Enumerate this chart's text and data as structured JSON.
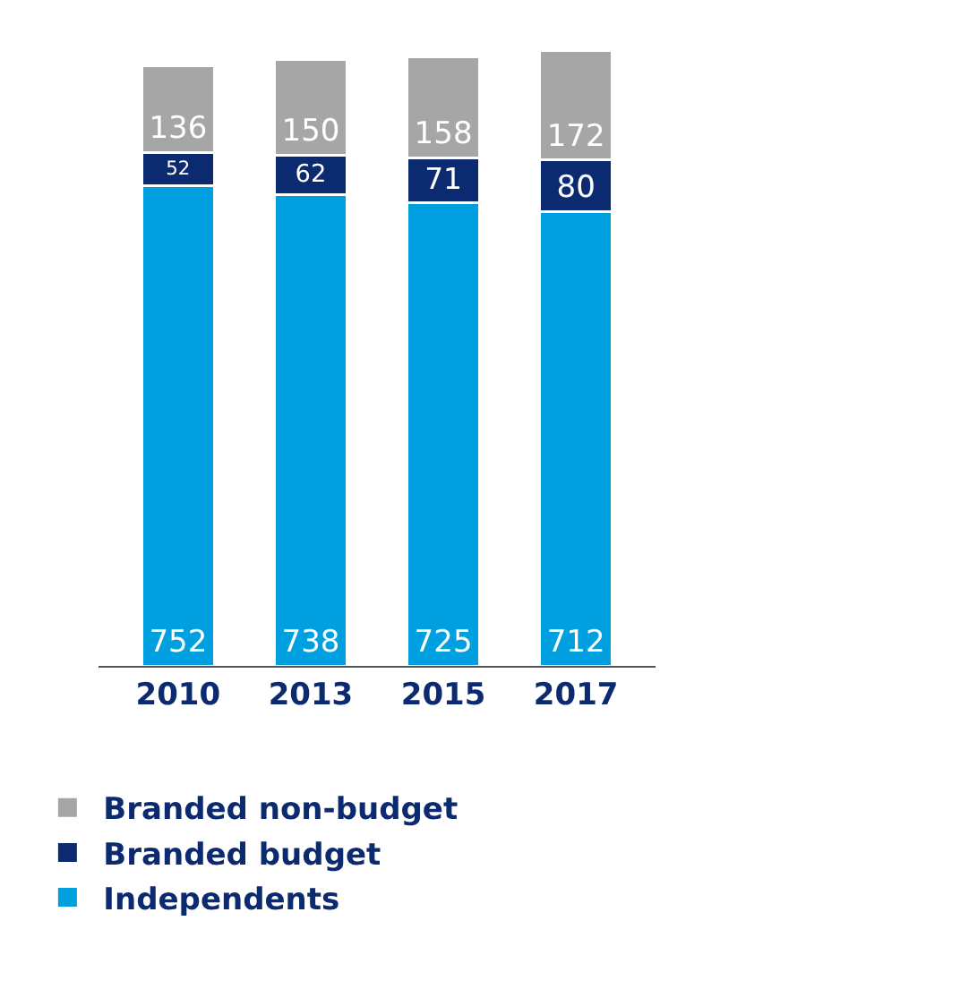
{
  "chart_data": {
    "type": "bar",
    "stacked": true,
    "categories": [
      "2010",
      "2013",
      "2015",
      "2017"
    ],
    "series": [
      {
        "name": "Independents",
        "color": "#009fe0",
        "values": [
          752,
          738,
          725,
          712
        ]
      },
      {
        "name": "Branded budget",
        "color": "#0b2a6f",
        "values": [
          52,
          62,
          71,
          80
        ]
      },
      {
        "name": "Branded non-budget",
        "color": "#a6a6a6",
        "values": [
          136,
          150,
          158,
          172
        ]
      }
    ],
    "data_labels": true,
    "legend": "bottom left",
    "grid": false
  }
}
